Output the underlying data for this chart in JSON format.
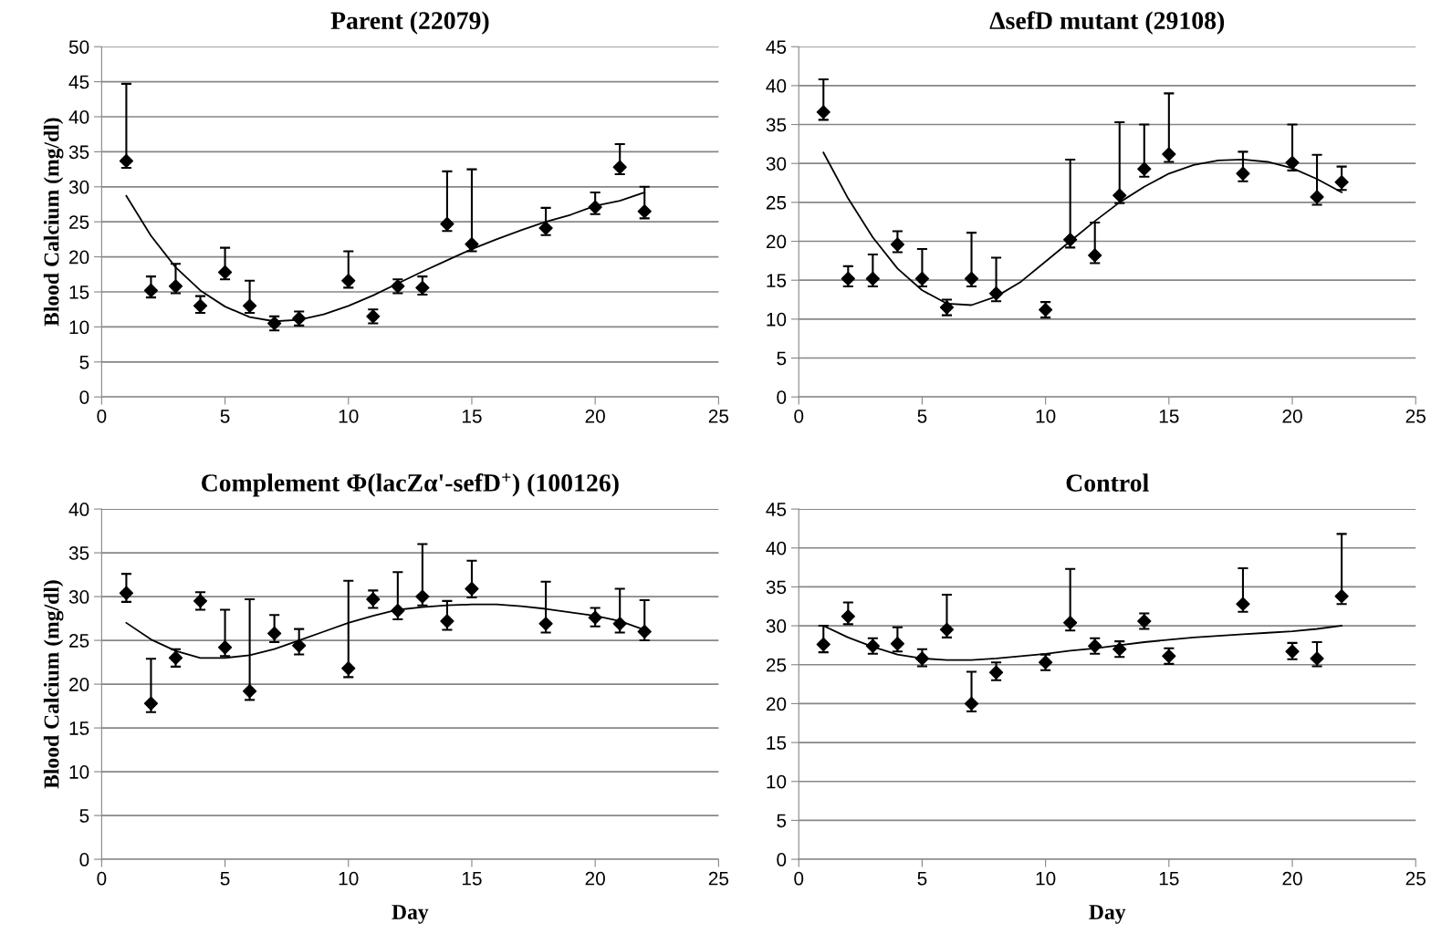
{
  "chart_data": [
    {
      "type": "scatter",
      "title": "Parent (22079)",
      "ylabel": "Blood Calcium (mg/dl)",
      "xlim": [
        0,
        25
      ],
      "xticks": [
        0,
        5,
        10,
        15,
        20,
        25
      ],
      "ylim": [
        0,
        50
      ],
      "yticks": [
        0,
        5,
        10,
        15,
        20,
        25,
        30,
        35,
        40,
        45,
        50
      ],
      "grid": "y",
      "marker": "diamond",
      "legend": false,
      "series": [
        {
          "color": "#000000",
          "x": [
            1,
            2,
            3,
            4,
            5,
            6,
            7,
            8,
            10,
            11,
            12,
            13,
            14,
            15,
            18,
            20,
            21,
            22
          ],
          "values": [
            33.7,
            15.2,
            15.8,
            13.0,
            17.8,
            13.0,
            10.5,
            11.2,
            16.6,
            11.5,
            15.8,
            15.6,
            24.7,
            21.8,
            24.1,
            27.1,
            32.8,
            26.5
          ],
          "errors": [
            [
              32.7,
              44.7
            ],
            [
              14.2,
              17.2
            ],
            [
              14.8,
              19.0
            ],
            [
              12.0,
              14.4
            ],
            [
              16.8,
              21.3
            ],
            [
              12.0,
              16.6
            ],
            [
              9.5,
              11.5
            ],
            [
              10.2,
              12.2
            ],
            [
              15.6,
              20.8
            ],
            [
              10.5,
              12.5
            ],
            [
              14.8,
              16.8
            ],
            [
              14.6,
              17.2
            ],
            [
              23.7,
              32.2
            ],
            [
              20.8,
              32.5
            ],
            [
              23.1,
              27.0
            ],
            [
              26.1,
              29.2
            ],
            [
              31.8,
              36.1
            ],
            [
              25.5,
              30.0
            ]
          ]
        },
        {
          "type": "line",
          "color": "#000000",
          "marker": "none",
          "line_style": "solid",
          "x": [
            1,
            2,
            3,
            4,
            5,
            6,
            7,
            8,
            9,
            10,
            11,
            12,
            13,
            14,
            15,
            16,
            17,
            18,
            19,
            20,
            21,
            22
          ],
          "values": [
            28.7,
            23.0,
            18.5,
            15.2,
            12.9,
            11.4,
            10.8,
            11.0,
            11.8,
            13.0,
            14.5,
            16.2,
            17.9,
            19.5,
            21.1,
            22.5,
            23.8,
            25.0,
            26.0,
            27.3,
            28.0,
            29.2
          ]
        }
      ]
    },
    {
      "type": "scatter",
      "title": "ΔsefD mutant (29108)",
      "xlim": [
        0,
        25
      ],
      "xticks": [
        0,
        5,
        10,
        15,
        20,
        25
      ],
      "ylim": [
        0,
        45
      ],
      "yticks": [
        0,
        5,
        10,
        15,
        20,
        25,
        30,
        35,
        40,
        45
      ],
      "grid": "y",
      "marker": "diamond",
      "legend": false,
      "series": [
        {
          "color": "#000000",
          "x": [
            1,
            2,
            3,
            4,
            5,
            6,
            7,
            8,
            10,
            11,
            12,
            13,
            14,
            15,
            18,
            20,
            21,
            22
          ],
          "values": [
            36.6,
            15.2,
            15.2,
            19.6,
            15.2,
            11.5,
            15.2,
            13.3,
            11.2,
            20.2,
            18.2,
            25.9,
            29.3,
            31.2,
            28.7,
            30.1,
            25.7,
            27.6
          ],
          "errors": [
            [
              35.6,
              40.8
            ],
            [
              14.2,
              16.8
            ],
            [
              14.2,
              18.3
            ],
            [
              18.6,
              21.3
            ],
            [
              14.2,
              19.0
            ],
            [
              10.5,
              12.5
            ],
            [
              14.2,
              21.1
            ],
            [
              12.3,
              17.9
            ],
            [
              10.2,
              12.2
            ],
            [
              19.2,
              30.5
            ],
            [
              17.2,
              22.4
            ],
            [
              24.9,
              35.3
            ],
            [
              28.3,
              35.0
            ],
            [
              30.2,
              39.0
            ],
            [
              27.7,
              31.5
            ],
            [
              29.1,
              35.0
            ],
            [
              24.7,
              31.1
            ],
            [
              26.6,
              29.6
            ]
          ]
        },
        {
          "type": "line",
          "color": "#000000",
          "marker": "none",
          "line_style": "solid",
          "x": [
            1,
            2,
            3,
            4,
            5,
            6,
            7,
            8,
            9,
            10,
            11,
            12,
            13,
            14,
            15,
            16,
            17,
            18,
            19,
            20,
            21,
            22
          ],
          "values": [
            31.4,
            25.5,
            20.5,
            16.5,
            13.7,
            12.0,
            11.8,
            12.9,
            14.8,
            17.4,
            20.0,
            22.6,
            25.0,
            27.0,
            28.7,
            29.8,
            30.4,
            30.5,
            30.2,
            29.4,
            28.0,
            26.3
          ]
        }
      ]
    },
    {
      "type": "scatter",
      "title": "Complement Φ(lacZα'-sefD$^{+}$) (100126)",
      "xlabel": "Day",
      "ylabel": "Blood Calcium (mg/dl)",
      "xlim": [
        0,
        25
      ],
      "xticks": [
        0,
        5,
        10,
        15,
        20,
        25
      ],
      "ylim": [
        0,
        40
      ],
      "yticks": [
        0,
        5,
        10,
        15,
        20,
        25,
        30,
        35,
        40
      ],
      "grid": "y",
      "marker": "diamond",
      "legend": false,
      "series": [
        {
          "color": "#000000",
          "x": [
            1,
            2,
            3,
            4,
            5,
            6,
            7,
            8,
            10,
            11,
            12,
            13,
            14,
            15,
            18,
            20,
            21,
            22
          ],
          "values": [
            30.4,
            17.8,
            23.0,
            29.5,
            24.2,
            19.2,
            25.8,
            24.4,
            21.8,
            29.7,
            28.4,
            30.0,
            27.2,
            30.9,
            26.9,
            27.6,
            26.9,
            26.0
          ],
          "errors": [
            [
              29.4,
              32.6
            ],
            [
              16.8,
              22.9
            ],
            [
              22.0,
              24.0
            ],
            [
              28.5,
              30.5
            ],
            [
              23.2,
              28.5
            ],
            [
              18.2,
              29.7
            ],
            [
              24.8,
              27.9
            ],
            [
              23.4,
              26.3
            ],
            [
              20.8,
              31.8
            ],
            [
              28.7,
              30.7
            ],
            [
              27.4,
              32.8
            ],
            [
              29.0,
              36.0
            ],
            [
              26.2,
              29.5
            ],
            [
              29.9,
              34.1
            ],
            [
              25.9,
              31.7
            ],
            [
              26.6,
              28.7
            ],
            [
              25.9,
              30.9
            ],
            [
              25.0,
              29.6
            ]
          ]
        },
        {
          "type": "line",
          "color": "#000000",
          "marker": "none",
          "line_style": "solid",
          "x": [
            1,
            2,
            3,
            4,
            5,
            6,
            7,
            8,
            9,
            10,
            11,
            12,
            13,
            14,
            15,
            16,
            17,
            18,
            19,
            20,
            21,
            22
          ],
          "values": [
            27.0,
            25.1,
            23.8,
            23.0,
            23.0,
            23.3,
            24.0,
            25.0,
            26.0,
            27.0,
            27.8,
            28.5,
            28.8,
            29.0,
            29.1,
            29.1,
            28.9,
            28.6,
            28.2,
            27.8,
            27.2,
            26.2
          ]
        }
      ]
    },
    {
      "type": "scatter",
      "title": "Control",
      "xlabel": "Day",
      "xlim": [
        0,
        25
      ],
      "xticks": [
        0,
        5,
        10,
        15,
        20,
        25
      ],
      "ylim": [
        0,
        45
      ],
      "yticks": [
        0,
        5,
        10,
        15,
        20,
        25,
        30,
        35,
        40,
        45
      ],
      "grid": "y",
      "marker": "diamond",
      "legend": false,
      "series": [
        {
          "color": "#000000",
          "x": [
            1,
            2,
            3,
            4,
            5,
            6,
            7,
            8,
            10,
            11,
            12,
            13,
            14,
            15,
            18,
            20,
            21,
            22
          ],
          "values": [
            27.6,
            31.2,
            27.4,
            27.7,
            25.8,
            29.5,
            20.0,
            24.0,
            25.3,
            30.4,
            27.4,
            27.0,
            30.6,
            26.1,
            32.8,
            26.7,
            25.8,
            33.8
          ],
          "errors": [
            [
              26.6,
              30.0
            ],
            [
              30.2,
              33.0
            ],
            [
              26.4,
              28.4
            ],
            [
              26.7,
              29.8
            ],
            [
              24.8,
              27.0
            ],
            [
              28.5,
              34.0
            ],
            [
              19.0,
              24.1
            ],
            [
              23.0,
              25.3
            ],
            [
              24.3,
              26.3
            ],
            [
              29.4,
              37.3
            ],
            [
              26.4,
              28.4
            ],
            [
              26.0,
              28.0
            ],
            [
              29.6,
              31.6
            ],
            [
              25.1,
              27.1
            ],
            [
              31.8,
              37.4
            ],
            [
              25.7,
              27.8
            ],
            [
              24.8,
              27.9
            ],
            [
              32.8,
              41.8
            ]
          ]
        },
        {
          "type": "line",
          "color": "#000000",
          "marker": "none",
          "line_style": "solid",
          "x": [
            1,
            2,
            3,
            4,
            5,
            6,
            7,
            8,
            9,
            10,
            11,
            12,
            13,
            14,
            15,
            16,
            17,
            18,
            19,
            20,
            21,
            22
          ],
          "values": [
            30.0,
            28.5,
            27.3,
            26.3,
            25.8,
            25.6,
            25.6,
            25.8,
            26.1,
            26.4,
            26.8,
            27.1,
            27.5,
            27.9,
            28.2,
            28.5,
            28.7,
            28.9,
            29.1,
            29.3,
            29.6,
            30.0
          ]
        }
      ]
    }
  ]
}
